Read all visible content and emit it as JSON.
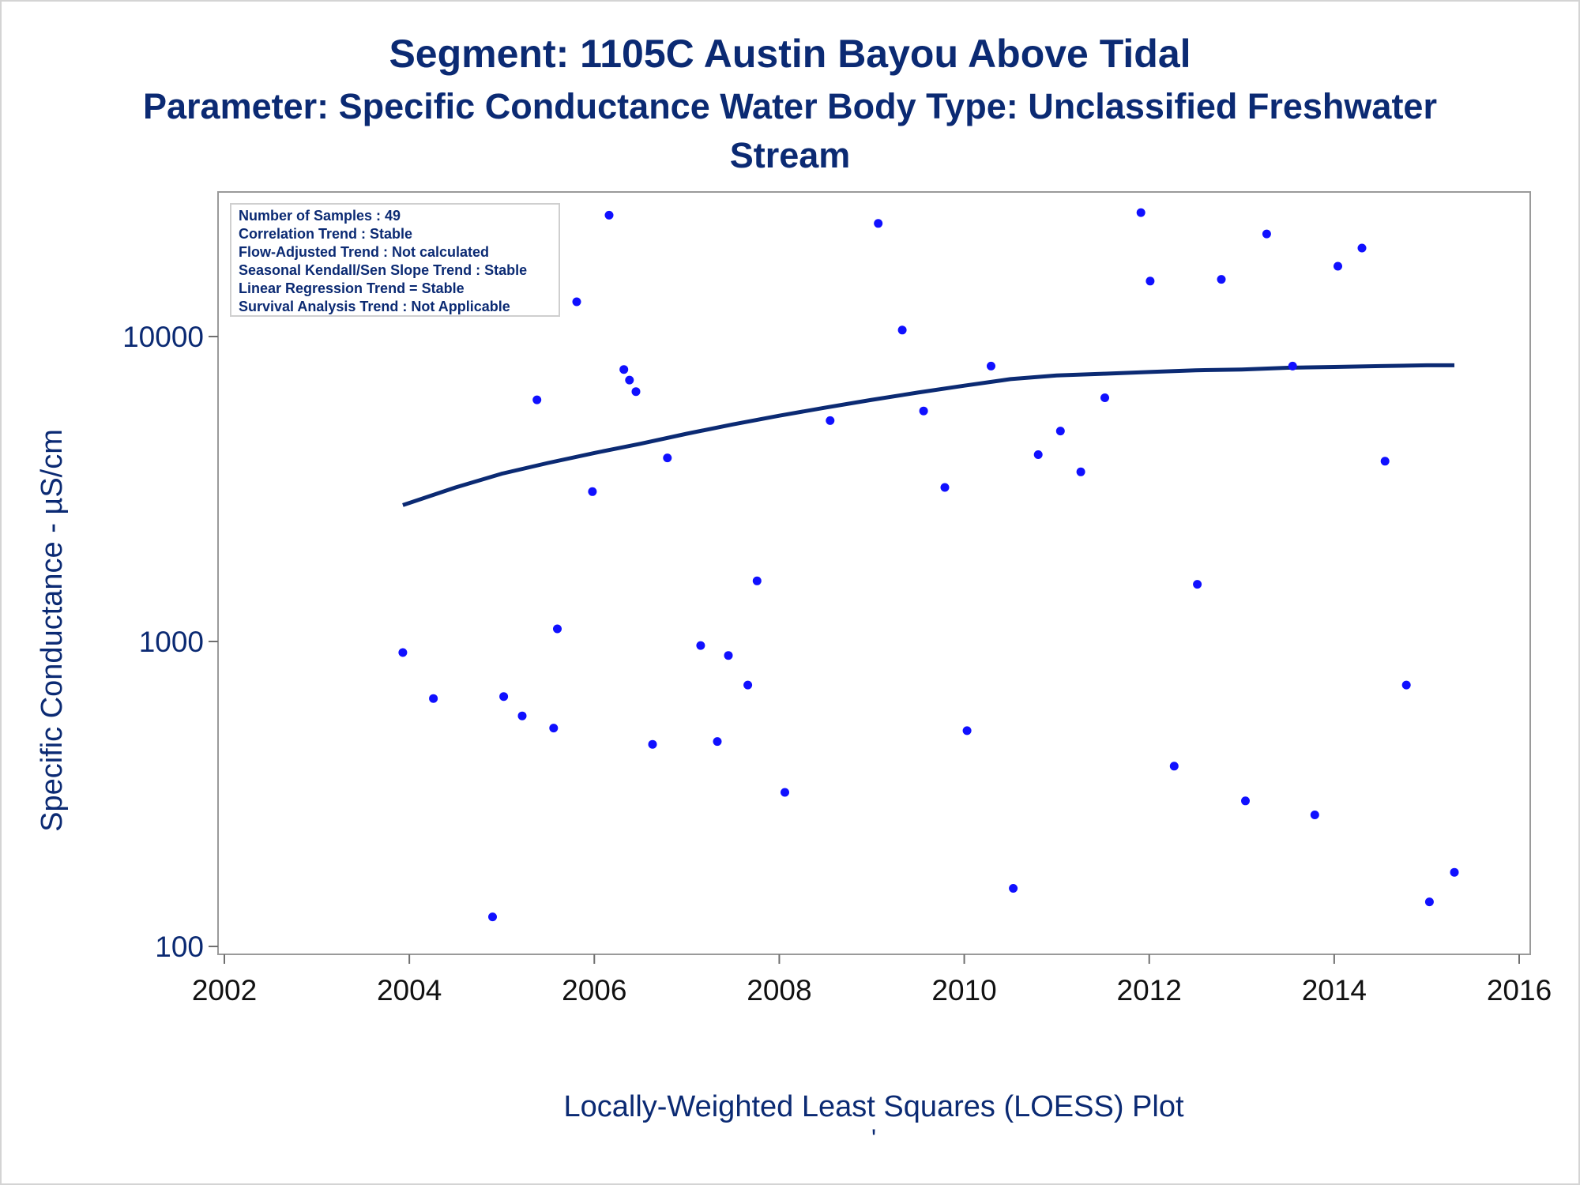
{
  "chart_data": {
    "type": "scatter",
    "title": "Segment: 1105C  Austin Bayou Above Tidal",
    "subtitle": "Parameter: Specific Conductance   Water Body Type: Unclassified Freshwater Stream",
    "xlabel": "Locally-Weighted Least Squares (LOESS) Plot",
    "ylabel": "Specific Conductance -  µS/cm",
    "footnote_mark": "'",
    "x_scale": "linear",
    "y_scale": "log",
    "xlim": [
      2002,
      2016
    ],
    "ylim": [
      100,
      30000
    ],
    "x_ticks": [
      2002,
      2004,
      2006,
      2008,
      2010,
      2012,
      2014,
      2016
    ],
    "y_ticks": [
      100,
      1000,
      10000
    ],
    "info_box": {
      "position": "top-left",
      "lines": [
        "Number of Samples : 49",
        "Correlation Trend : Stable",
        "Flow-Adjusted Trend : Not calculated",
        "Seasonal Kendall/Sen Slope Trend : Stable",
        "Linear Regression Trend = Stable",
        "Survival Analysis Trend : Not Applicable"
      ]
    },
    "series": [
      {
        "kind": "points",
        "color": "#1010ff",
        "points": [
          [
            2003.93,
            920
          ],
          [
            2004.26,
            650
          ],
          [
            2004.9,
            125
          ],
          [
            2005.02,
            660
          ],
          [
            2005.22,
            570
          ],
          [
            2005.38,
            6200
          ],
          [
            2005.56,
            520
          ],
          [
            2005.6,
            1100
          ],
          [
            2005.81,
            13000
          ],
          [
            2005.98,
            3100
          ],
          [
            2006.16,
            25000
          ],
          [
            2006.32,
            7800
          ],
          [
            2006.38,
            7200
          ],
          [
            2006.45,
            6600
          ],
          [
            2006.63,
            460
          ],
          [
            2006.79,
            4000
          ],
          [
            2007.15,
            970
          ],
          [
            2007.33,
            470
          ],
          [
            2007.45,
            900
          ],
          [
            2007.66,
            720
          ],
          [
            2007.76,
            1580
          ],
          [
            2008.06,
            320
          ],
          [
            2008.55,
            5300
          ],
          [
            2009.07,
            23500
          ],
          [
            2009.33,
            10500
          ],
          [
            2009.56,
            5700
          ],
          [
            2009.79,
            3200
          ],
          [
            2010.03,
            510
          ],
          [
            2010.29,
            8000
          ],
          [
            2010.53,
            155
          ],
          [
            2010.8,
            4100
          ],
          [
            2011.04,
            4900
          ],
          [
            2011.26,
            3600
          ],
          [
            2011.52,
            6300
          ],
          [
            2011.91,
            25500
          ],
          [
            2012.01,
            15200
          ],
          [
            2012.27,
            390
          ],
          [
            2012.52,
            1540
          ],
          [
            2012.78,
            15400
          ],
          [
            2013.04,
            300
          ],
          [
            2013.27,
            21700
          ],
          [
            2013.55,
            8000
          ],
          [
            2013.79,
            270
          ],
          [
            2014.04,
            17000
          ],
          [
            2014.3,
            19500
          ],
          [
            2014.55,
            3900
          ],
          [
            2014.78,
            720
          ],
          [
            2015.03,
            140
          ],
          [
            2015.3,
            175
          ]
        ]
      },
      {
        "kind": "loess",
        "color": "#0b2a73",
        "points": [
          [
            2003.93,
            2800
          ],
          [
            2004.5,
            3200
          ],
          [
            2005.0,
            3550
          ],
          [
            2005.5,
            3850
          ],
          [
            2006.0,
            4150
          ],
          [
            2006.5,
            4450
          ],
          [
            2007.0,
            4800
          ],
          [
            2007.5,
            5150
          ],
          [
            2008.0,
            5500
          ],
          [
            2008.5,
            5850
          ],
          [
            2009.0,
            6200
          ],
          [
            2009.5,
            6550
          ],
          [
            2010.0,
            6900
          ],
          [
            2010.5,
            7250
          ],
          [
            2011.0,
            7450
          ],
          [
            2011.5,
            7550
          ],
          [
            2012.0,
            7650
          ],
          [
            2012.5,
            7750
          ],
          [
            2013.0,
            7800
          ],
          [
            2013.5,
            7900
          ],
          [
            2014.0,
            7950
          ],
          [
            2014.5,
            8000
          ],
          [
            2015.0,
            8050
          ],
          [
            2015.3,
            8050
          ]
        ]
      }
    ]
  }
}
